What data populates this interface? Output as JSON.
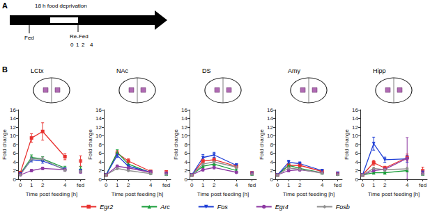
{
  "panel_a": {
    "label": "A",
    "arrow_text": "18 h food deprivation",
    "fed_label": "Fed",
    "refed_label": "Re-Fed",
    "refed_times": [
      "0",
      "1",
      "2",
      "4"
    ]
  },
  "panel_b_label": "B",
  "chart_data": [
    {
      "type": "line",
      "title": "LCtx",
      "x_label": "Time post feeding [h]",
      "y_label": "Fold change",
      "x": [
        0,
        1,
        2,
        4
      ],
      "fed_x": 5.4,
      "xlim": [
        -0.2,
        5.8
      ],
      "xticks": [
        0,
        1,
        2,
        4,
        {
          "value": 5.4,
          "label": "fed"
        }
      ],
      "ylim": [
        0,
        16
      ],
      "yticks": [
        0,
        2,
        4,
        6,
        8,
        10,
        12,
        14,
        16
      ],
      "grid": false,
      "legend": "bottom",
      "series": [
        {
          "name": "Egr2",
          "color": "#e8312f",
          "marker": "square",
          "values": [
            1.5,
            9.5,
            11.0,
            5.2
          ],
          "errors": [
            0.3,
            1.0,
            2.0,
            0.7
          ],
          "fed_value": 4.2,
          "fed_error": 1.2
        },
        {
          "name": "Arc",
          "color": "#1a9e3a",
          "marker": "triangle",
          "values": [
            1.3,
            5.0,
            4.7,
            2.6
          ],
          "errors": [
            0.2,
            0.6,
            0.5,
            0.4
          ],
          "fed_value": 2.5,
          "fed_error": 0.4
        },
        {
          "name": "Fos",
          "color": "#1f3fd6",
          "marker": "triangle-down",
          "values": [
            1.2,
            4.5,
            4.2,
            2.3
          ],
          "errors": [
            0.2,
            0.5,
            0.5,
            0.3
          ],
          "fed_value": 2.0,
          "fed_error": 0.3
        },
        {
          "name": "Egr4",
          "color": "#8e3ba3",
          "marker": "circle",
          "values": [
            1.0,
            2.0,
            2.5,
            2.2
          ],
          "errors": [
            0.1,
            0.3,
            0.3,
            0.3
          ],
          "fed_value": 1.7,
          "fed_error": 0.3
        },
        {
          "name": "Fosb",
          "color": "#909090",
          "marker": "diamond",
          "values": [
            1.0,
            4.7,
            4.6,
            2.1
          ],
          "errors": [
            0.1,
            0.5,
            0.5,
            0.3
          ],
          "fed_value": 1.8,
          "fed_error": 0.3
        }
      ]
    },
    {
      "type": "line",
      "title": "NAc",
      "x_label": "Time post feeding [h]",
      "y_label": "Fold change",
      "x": [
        0,
        1,
        2,
        4
      ],
      "fed_x": 5.4,
      "xlim": [
        -0.2,
        5.8
      ],
      "xticks": [
        0,
        1,
        2,
        4,
        {
          "value": 5.4,
          "label": "fed"
        }
      ],
      "ylim": [
        0,
        16
      ],
      "yticks": [
        0,
        2,
        4,
        6,
        8,
        10,
        12,
        14,
        16
      ],
      "grid": false,
      "legend": "bottom",
      "series": [
        {
          "name": "Egr2",
          "color": "#e8312f",
          "marker": "square",
          "values": [
            1.0,
            6.0,
            4.2,
            1.8
          ],
          "errors": [
            0.1,
            0.6,
            0.5,
            0.3
          ],
          "fed_value": 1.7,
          "fed_error": 0.3
        },
        {
          "name": "Arc",
          "color": "#1a9e3a",
          "marker": "triangle",
          "values": [
            1.0,
            6.2,
            3.5,
            1.5
          ],
          "errors": [
            0.1,
            0.6,
            0.4,
            0.2
          ],
          "fed_value": 1.2,
          "fed_error": 0.2
        },
        {
          "name": "Fos",
          "color": "#1f3fd6",
          "marker": "triangle-down",
          "values": [
            1.0,
            5.5,
            3.0,
            1.6
          ],
          "errors": [
            0.1,
            0.5,
            0.4,
            0.2
          ],
          "fed_value": 1.3,
          "fed_error": 0.2
        },
        {
          "name": "Egr4",
          "color": "#8e3ba3",
          "marker": "circle",
          "values": [
            1.0,
            3.0,
            2.6,
            1.6
          ],
          "errors": [
            0.1,
            0.3,
            0.3,
            0.2
          ],
          "fed_value": 1.4,
          "fed_error": 0.2
        },
        {
          "name": "Fosb",
          "color": "#909090",
          "marker": "diamond",
          "values": [
            1.0,
            2.5,
            2.0,
            1.3
          ],
          "errors": [
            0.1,
            0.3,
            0.2,
            0.2
          ],
          "fed_value": 1.1,
          "fed_error": 0.2
        }
      ]
    },
    {
      "type": "line",
      "title": "DS",
      "x_label": "Time post feeding [h]",
      "y_label": "Fold change",
      "x": [
        0,
        1,
        2,
        4
      ],
      "fed_x": 5.4,
      "xlim": [
        -0.2,
        5.8
      ],
      "xticks": [
        0,
        1,
        2,
        4,
        {
          "value": 5.4,
          "label": "fed"
        }
      ],
      "ylim": [
        0,
        16
      ],
      "yticks": [
        0,
        2,
        4,
        6,
        8,
        10,
        12,
        14,
        16
      ],
      "grid": false,
      "legend": "bottom",
      "series": [
        {
          "name": "Egr2",
          "color": "#e8312f",
          "marker": "square",
          "values": [
            1.0,
            4.2,
            4.5,
            3.0
          ],
          "errors": [
            0.1,
            0.5,
            0.5,
            0.4
          ],
          "fed_value": 1.5,
          "fed_error": 0.2
        },
        {
          "name": "Arc",
          "color": "#1a9e3a",
          "marker": "triangle",
          "values": [
            1.0,
            3.0,
            3.5,
            2.0
          ],
          "errors": [
            0.1,
            0.4,
            0.4,
            0.3
          ],
          "fed_value": 1.2,
          "fed_error": 0.2
        },
        {
          "name": "Fos",
          "color": "#1f3fd6",
          "marker": "triangle-down",
          "values": [
            1.0,
            5.0,
            5.6,
            3.2
          ],
          "errors": [
            0.1,
            0.7,
            0.6,
            0.4
          ],
          "fed_value": 1.4,
          "fed_error": 0.2
        },
        {
          "name": "Egr4",
          "color": "#8e3ba3",
          "marker": "circle",
          "values": [
            1.0,
            2.2,
            2.7,
            1.6
          ],
          "errors": [
            0.1,
            0.3,
            0.3,
            0.2
          ],
          "fed_value": 1.3,
          "fed_error": 0.2
        },
        {
          "name": "Fosb",
          "color": "#909090",
          "marker": "diamond",
          "values": [
            1.0,
            3.5,
            4.0,
            2.8
          ],
          "errors": [
            0.1,
            0.4,
            0.4,
            0.3
          ],
          "fed_value": 1.2,
          "fed_error": 0.2
        }
      ]
    },
    {
      "type": "line",
      "title": "Amy",
      "x_label": "Time post feeding [h]",
      "y_label": "Fold change",
      "x": [
        0,
        1,
        2,
        4
      ],
      "fed_x": 5.4,
      "xlim": [
        -0.2,
        5.8
      ],
      "xticks": [
        0,
        1,
        2,
        4,
        {
          "value": 5.4,
          "label": "fed"
        }
      ],
      "ylim": [
        0,
        16
      ],
      "yticks": [
        0,
        2,
        4,
        6,
        8,
        10,
        12,
        14,
        16
      ],
      "grid": false,
      "legend": "bottom",
      "series": [
        {
          "name": "Egr2",
          "color": "#e8312f",
          "marker": "square",
          "values": [
            1.0,
            3.2,
            3.2,
            1.8
          ],
          "errors": [
            0.1,
            0.4,
            0.4,
            0.3
          ],
          "fed_value": 1.3,
          "fed_error": 0.2
        },
        {
          "name": "Arc",
          "color": "#1a9e3a",
          "marker": "triangle",
          "values": [
            1.0,
            3.2,
            2.5,
            1.5
          ],
          "errors": [
            0.1,
            0.4,
            0.3,
            0.2
          ],
          "fed_value": 1.2,
          "fed_error": 0.2
        },
        {
          "name": "Fos",
          "color": "#1f3fd6",
          "marker": "triangle-down",
          "values": [
            1.0,
            3.9,
            3.6,
            2.0
          ],
          "errors": [
            0.1,
            0.5,
            0.4,
            0.3
          ],
          "fed_value": 1.4,
          "fed_error": 0.2
        },
        {
          "name": "Egr4",
          "color": "#8e3ba3",
          "marker": "circle",
          "values": [
            1.0,
            2.0,
            2.2,
            1.5
          ],
          "errors": [
            0.1,
            0.3,
            0.3,
            0.2
          ],
          "fed_value": 1.2,
          "fed_error": 0.2
        },
        {
          "name": "Fosb",
          "color": "#909090",
          "marker": "diamond",
          "values": [
            1.0,
            2.6,
            2.3,
            1.4
          ],
          "errors": [
            0.1,
            0.3,
            0.3,
            0.2
          ],
          "fed_value": 1.1,
          "fed_error": 0.2
        }
      ]
    },
    {
      "type": "line",
      "title": "Hipp",
      "x_label": "Time post feeding [h]",
      "y_label": "Fold change",
      "x": [
        0,
        1,
        2,
        4
      ],
      "fed_x": 5.4,
      "xlim": [
        -0.2,
        5.8
      ],
      "xticks": [
        0,
        1,
        2,
        4,
        {
          "value": 5.4,
          "label": "fed"
        }
      ],
      "ylim": [
        0,
        16
      ],
      "yticks": [
        0,
        2,
        4,
        6,
        8,
        10,
        12,
        14,
        16
      ],
      "grid": false,
      "legend": "bottom",
      "series": [
        {
          "name": "Egr2",
          "color": "#e8312f",
          "marker": "square",
          "values": [
            1.0,
            3.8,
            2.6,
            5.0
          ],
          "errors": [
            0.1,
            0.6,
            0.4,
            0.8
          ],
          "fed_value": 2.0,
          "fed_error": 0.8
        },
        {
          "name": "Arc",
          "color": "#1a9e3a",
          "marker": "triangle",
          "values": [
            1.0,
            1.5,
            1.5,
            2.0
          ],
          "errors": [
            0.1,
            0.2,
            0.2,
            0.3
          ],
          "fed_value": 1.2,
          "fed_error": 0.2
        },
        {
          "name": "Fos",
          "color": "#1f3fd6",
          "marker": "triangle-down",
          "values": [
            1.0,
            8.2,
            4.5,
            4.7
          ],
          "errors": [
            0.1,
            1.5,
            0.6,
            0.8
          ],
          "fed_value": 1.6,
          "fed_error": 0.3
        },
        {
          "name": "Egr4",
          "color": "#8e3ba3",
          "marker": "circle",
          "values": [
            1.0,
            2.0,
            2.3,
            4.8
          ],
          "errors": [
            0.1,
            0.3,
            0.3,
            4.8
          ],
          "fed_value": 1.3,
          "fed_error": 0.2
        },
        {
          "name": "Fosb",
          "color": "#909090",
          "marker": "diamond",
          "values": [
            1.0,
            2.5,
            2.2,
            2.4
          ],
          "errors": [
            0.1,
            0.3,
            0.3,
            0.4
          ],
          "fed_value": 1.2,
          "fed_error": 0.2
        }
      ]
    }
  ]
}
